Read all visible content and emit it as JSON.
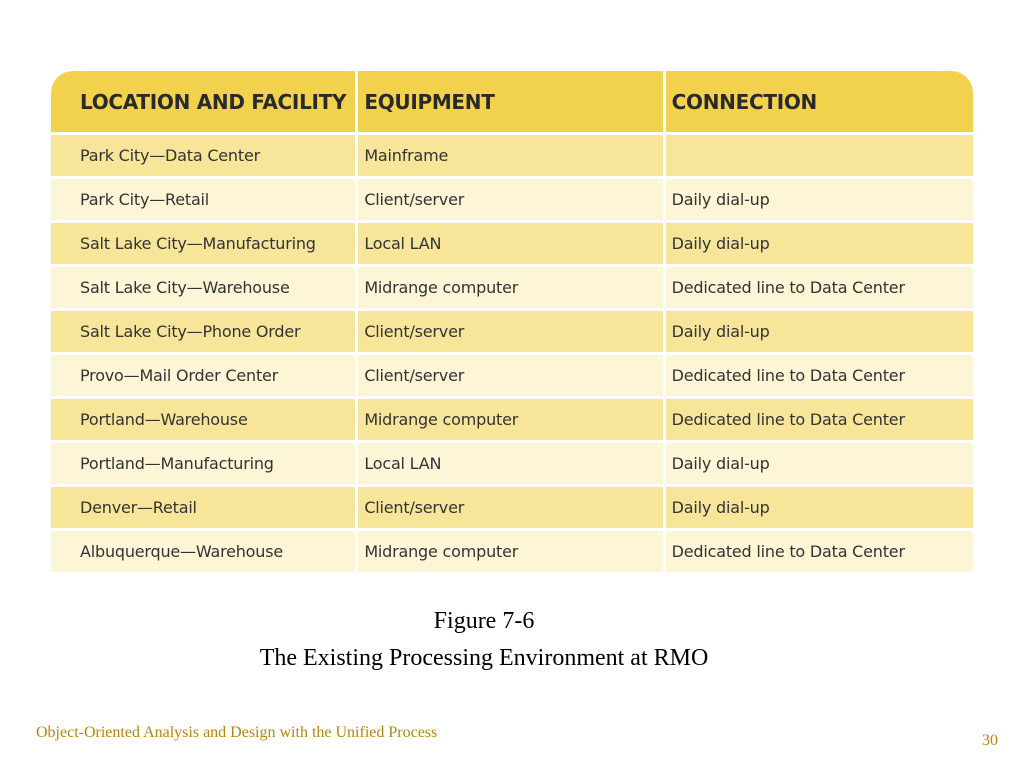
{
  "table": {
    "headers": [
      "LOCATION AND FACILITY",
      "EQUIPMENT",
      "CONNECTION"
    ],
    "rows": [
      [
        "Park City—Data Center",
        "Mainframe",
        ""
      ],
      [
        "Park City—Retail",
        "Client/server",
        "Daily dial-up"
      ],
      [
        "Salt Lake City—Manufacturing",
        "Local LAN",
        "Daily dial-up"
      ],
      [
        "Salt Lake City—Warehouse",
        "Midrange computer",
        "Dedicated line to Data Center"
      ],
      [
        "Salt Lake City—Phone Order",
        "Client/server",
        "Daily dial-up"
      ],
      [
        "Provo—Mail Order Center",
        "Client/server",
        "Dedicated line to Data Center"
      ],
      [
        "Portland—Warehouse",
        "Midrange computer",
        "Dedicated line to Data Center"
      ],
      [
        "Portland—Manufacturing",
        "Local LAN",
        "Daily dial-up"
      ],
      [
        "Denver—Retail",
        "Client/server",
        "Daily dial-up"
      ],
      [
        "Albuquerque—Warehouse",
        "Midrange computer",
        "Dedicated line to Data Center"
      ]
    ]
  },
  "caption": {
    "figure_number": "Figure 7-6",
    "title": "The Existing Processing Environment at RMO"
  },
  "footer": {
    "text": "Object-Oriented Analysis and Design with the Unified Process",
    "page_number": "30"
  },
  "colors": {
    "header_background": "#f2d24c",
    "row_dark": "#f7e59a",
    "row_light": "#fcf5d6",
    "footer_text": "#b8860b"
  }
}
